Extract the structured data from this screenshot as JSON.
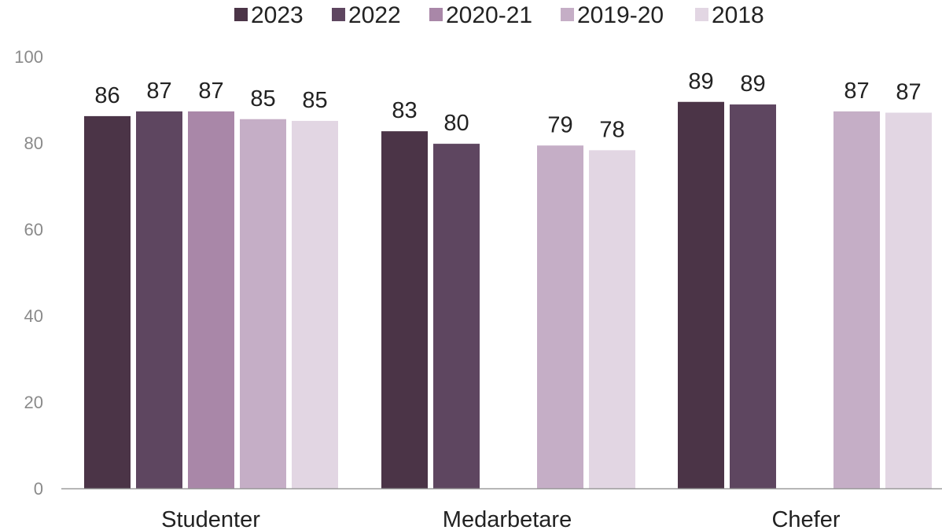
{
  "chart_data": {
    "type": "bar",
    "categories": [
      "Studenter",
      "Medarbetare",
      "Chefer"
    ],
    "series": [
      {
        "name": "2023",
        "color": "#4b3447",
        "values": [
          86,
          83,
          89
        ],
        "plot_values": [
          86.2,
          82.7,
          89.5
        ]
      },
      {
        "name": "2022",
        "color": "#5e4660",
        "values": [
          87,
          80,
          89
        ],
        "plot_values": [
          87.3,
          79.8,
          88.9
        ]
      },
      {
        "name": "2020-21",
        "color": "#a987a8",
        "values": [
          87,
          null,
          null
        ],
        "plot_values": [
          87.3,
          null,
          null
        ]
      },
      {
        "name": "2019-20",
        "color": "#c5aec6",
        "values": [
          85,
          79,
          87
        ],
        "plot_values": [
          85.5,
          79.4,
          87.3
        ]
      },
      {
        "name": "2018",
        "color": "#e2d6e3",
        "values": [
          85,
          78,
          87
        ],
        "plot_values": [
          85.1,
          78.3,
          87.0
        ]
      }
    ],
    "y_ticks": [
      "0",
      "20",
      "40",
      "60",
      "80",
      "100"
    ],
    "ylim": [
      0,
      100
    ],
    "grid": false,
    "legend_position": "top"
  }
}
